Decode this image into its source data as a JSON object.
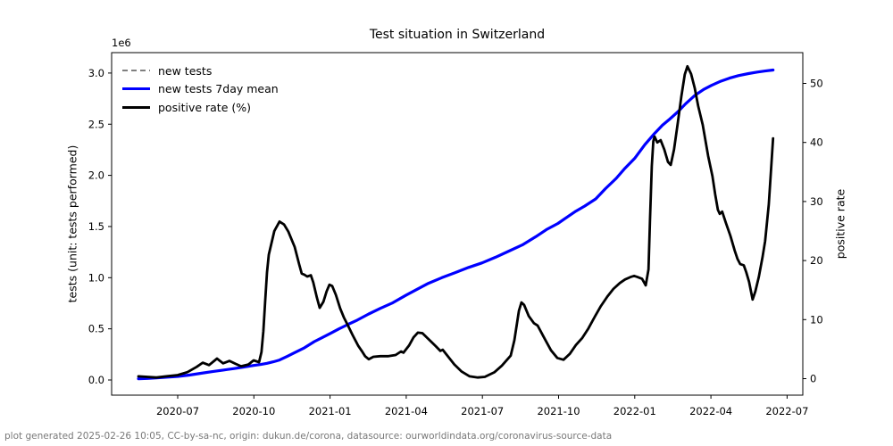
{
  "title": "Test situation in Switzerland",
  "offset_label": "1e6",
  "footer": "plot generated 2025-02-26 10:05, CC-by-sa-nc, origin: dukun.de/corona, datasource: ourworldindata.org/coronavirus-source-data",
  "colors": {
    "new_tests": "#7f7f7f",
    "new_tests_7day_mean": "#0000ff",
    "positive_rate": "#000000",
    "footer_text": "#787878",
    "axis": "#000000"
  },
  "chart_data": {
    "type": "line",
    "title": "Test situation in Switzerland",
    "xlabel": "",
    "ylabel_left": "tests (unit: tests performed)",
    "ylabel_right": "positive rate",
    "y_offset_text": "1e6",
    "grid": false,
    "legend_position": "upper-left",
    "x_ticks": [
      2020.5,
      2020.75,
      2021.0,
      2021.25,
      2021.5,
      2021.75,
      2022.0,
      2022.25,
      2022.5
    ],
    "x_tick_labels": [
      "2020-07",
      "2020-10",
      "2021-01",
      "2021-04",
      "2021-07",
      "2021-10",
      "2022-01",
      "2022-04",
      "2022-07"
    ],
    "y_ticks_left": [
      0.0,
      0.5,
      1.0,
      1.5,
      2.0,
      2.5,
      3.0
    ],
    "y_tick_labels_left": [
      "0.0",
      "0.5",
      "1.0",
      "1.5",
      "2.0",
      "2.5",
      "3.0"
    ],
    "y_ticks_right": [
      0,
      10,
      20,
      30,
      40,
      50
    ],
    "y_tick_labels_right": [
      "0",
      "10",
      "20",
      "30",
      "40",
      "50"
    ],
    "ylim_left": [
      -0.15,
      3.2
    ],
    "ylim_right": [
      -2.8,
      55.2
    ],
    "xlim": [
      2020.28,
      2022.55
    ],
    "legend": [
      {
        "label": "new tests",
        "color": "#7f7f7f",
        "dash": true
      },
      {
        "label": "new tests 7day mean",
        "color": "#0000ff",
        "dash": false
      },
      {
        "label": "positive rate (%)",
        "color": "#000000",
        "dash": false
      }
    ],
    "series": [
      {
        "name": "new tests",
        "axis": "left",
        "unit": "tests (1e6)",
        "color": "#7f7f7f",
        "dash": true,
        "width": 1.8,
        "points_from": "new tests 7day mean"
      },
      {
        "name": "new tests 7day mean",
        "axis": "left",
        "unit": "tests (1e6)",
        "color": "#0000ff",
        "dash": false,
        "width": 3.2,
        "points": [
          [
            2020.371,
            0.012
          ],
          [
            2020.4,
            0.015
          ],
          [
            2020.43,
            0.02
          ],
          [
            2020.462,
            0.027
          ],
          [
            2020.5,
            0.035
          ],
          [
            2020.538,
            0.048
          ],
          [
            2020.576,
            0.065
          ],
          [
            2020.614,
            0.082
          ],
          [
            2020.649,
            0.097
          ],
          [
            2020.685,
            0.112
          ],
          [
            2020.714,
            0.125
          ],
          [
            2020.749,
            0.142
          ],
          [
            2020.773,
            0.152
          ],
          [
            2020.793,
            0.163
          ],
          [
            2020.814,
            0.178
          ],
          [
            2020.834,
            0.195
          ],
          [
            2020.86,
            0.232
          ],
          [
            2020.884,
            0.268
          ],
          [
            2020.916,
            0.315
          ],
          [
            2020.948,
            0.375
          ],
          [
            2020.978,
            0.42
          ],
          [
            2021.001,
            0.455
          ],
          [
            2021.03,
            0.5
          ],
          [
            2021.06,
            0.545
          ],
          [
            2021.089,
            0.585
          ],
          [
            2021.127,
            0.645
          ],
          [
            2021.165,
            0.7
          ],
          [
            2021.206,
            0.755
          ],
          [
            2021.25,
            0.83
          ],
          [
            2021.294,
            0.9
          ],
          [
            2021.323,
            0.945
          ],
          [
            2021.367,
            1.0
          ],
          [
            2021.411,
            1.05
          ],
          [
            2021.455,
            1.1
          ],
          [
            2021.499,
            1.145
          ],
          [
            2021.543,
            1.2
          ],
          [
            2021.587,
            1.26
          ],
          [
            2021.631,
            1.32
          ],
          [
            2021.675,
            1.4
          ],
          [
            2021.71,
            1.47
          ],
          [
            2021.748,
            1.53
          ],
          [
            2021.772,
            1.58
          ],
          [
            2021.807,
            1.65
          ],
          [
            2021.836,
            1.7
          ],
          [
            2021.872,
            1.77
          ],
          [
            2021.904,
            1.87
          ],
          [
            2021.939,
            1.97
          ],
          [
            2021.968,
            2.07
          ],
          [
            2022.001,
            2.17
          ],
          [
            2022.033,
            2.3
          ],
          [
            2022.065,
            2.41
          ],
          [
            2022.091,
            2.49
          ],
          [
            2022.115,
            2.55
          ],
          [
            2022.141,
            2.62
          ],
          [
            2022.167,
            2.7
          ],
          [
            2022.197,
            2.78
          ],
          [
            2022.226,
            2.84
          ],
          [
            2022.252,
            2.88
          ],
          [
            2022.282,
            2.92
          ],
          [
            2022.311,
            2.95
          ],
          [
            2022.34,
            2.975
          ],
          [
            2022.373,
            2.995
          ],
          [
            2022.402,
            3.01
          ],
          [
            2022.428,
            3.02
          ],
          [
            2022.454,
            3.03
          ]
        ]
      },
      {
        "name": "positive rate (%)",
        "axis": "right",
        "unit": "%",
        "color": "#000000",
        "dash": false,
        "width": 2.8,
        "points": [
          [
            2020.371,
            0.4
          ],
          [
            2020.4,
            0.3
          ],
          [
            2020.43,
            0.2
          ],
          [
            2020.462,
            0.4
          ],
          [
            2020.5,
            0.6
          ],
          [
            2020.532,
            1.1
          ],
          [
            2020.562,
            2.0
          ],
          [
            2020.582,
            2.7
          ],
          [
            2020.603,
            2.3
          ],
          [
            2020.629,
            3.4
          ],
          [
            2020.649,
            2.6
          ],
          [
            2020.67,
            3.0
          ],
          [
            2020.69,
            2.5
          ],
          [
            2020.708,
            2.1
          ],
          [
            2020.732,
            2.4
          ],
          [
            2020.749,
            3.1
          ],
          [
            2020.767,
            2.8
          ],
          [
            2020.775,
            4.5
          ],
          [
            2020.781,
            8.0
          ],
          [
            2020.787,
            13.0
          ],
          [
            2020.793,
            18.0
          ],
          [
            2020.799,
            21.0
          ],
          [
            2020.817,
            25.0
          ],
          [
            2020.834,
            26.6
          ],
          [
            2020.849,
            26.1
          ],
          [
            2020.863,
            24.9
          ],
          [
            2020.884,
            22.3
          ],
          [
            2020.899,
            19.3
          ],
          [
            2020.907,
            17.8
          ],
          [
            2020.916,
            17.6
          ],
          [
            2020.925,
            17.3
          ],
          [
            2020.937,
            17.5
          ],
          [
            2020.945,
            16.3
          ],
          [
            2020.957,
            13.7
          ],
          [
            2020.966,
            12.0
          ],
          [
            2020.978,
            13.0
          ],
          [
            2020.989,
            14.8
          ],
          [
            2020.998,
            15.9
          ],
          [
            2021.007,
            15.7
          ],
          [
            2021.019,
            14.2
          ],
          [
            2021.033,
            11.9
          ],
          [
            2021.045,
            10.4
          ],
          [
            2021.057,
            9.2
          ],
          [
            2021.074,
            7.4
          ],
          [
            2021.092,
            5.6
          ],
          [
            2021.104,
            4.7
          ],
          [
            2021.115,
            3.8
          ],
          [
            2021.127,
            3.3
          ],
          [
            2021.142,
            3.7
          ],
          [
            2021.165,
            3.8
          ],
          [
            2021.192,
            3.8
          ],
          [
            2021.215,
            4.0
          ],
          [
            2021.233,
            4.6
          ],
          [
            2021.241,
            4.4
          ],
          [
            2021.259,
            5.6
          ],
          [
            2021.274,
            7.0
          ],
          [
            2021.288,
            7.8
          ],
          [
            2021.303,
            7.7
          ],
          [
            2021.323,
            6.7
          ],
          [
            2021.347,
            5.5
          ],
          [
            2021.362,
            4.7
          ],
          [
            2021.37,
            4.9
          ],
          [
            2021.385,
            3.9
          ],
          [
            2021.408,
            2.4
          ],
          [
            2021.432,
            1.2
          ],
          [
            2021.458,
            0.4
          ],
          [
            2021.485,
            0.2
          ],
          [
            2021.508,
            0.3
          ],
          [
            2021.54,
            1.1
          ],
          [
            2021.564,
            2.2
          ],
          [
            2021.581,
            3.2
          ],
          [
            2021.593,
            3.9
          ],
          [
            2021.605,
            6.5
          ],
          [
            2021.62,
            11.5
          ],
          [
            2021.628,
            12.9
          ],
          [
            2021.637,
            12.5
          ],
          [
            2021.652,
            10.6
          ],
          [
            2021.669,
            9.4
          ],
          [
            2021.681,
            9.0
          ],
          [
            2021.702,
            7.0
          ],
          [
            2021.725,
            4.8
          ],
          [
            2021.746,
            3.5
          ],
          [
            2021.766,
            3.2
          ],
          [
            2021.787,
            4.2
          ],
          [
            2021.807,
            5.7
          ],
          [
            2021.828,
            6.9
          ],
          [
            2021.848,
            8.5
          ],
          [
            2021.869,
            10.5
          ],
          [
            2021.889,
            12.3
          ],
          [
            2021.91,
            13.9
          ],
          [
            2021.93,
            15.2
          ],
          [
            2021.951,
            16.2
          ],
          [
            2021.968,
            16.8
          ],
          [
            2021.986,
            17.2
          ],
          [
            2021.998,
            17.4
          ],
          [
            2022.009,
            17.2
          ],
          [
            2022.024,
            16.9
          ],
          [
            2022.036,
            15.8
          ],
          [
            2022.045,
            18.5
          ],
          [
            2022.05,
            27.0
          ],
          [
            2022.056,
            36.0
          ],
          [
            2022.061,
            40.2
          ],
          [
            2022.065,
            41.0
          ],
          [
            2022.074,
            40.0
          ],
          [
            2022.085,
            40.4
          ],
          [
            2022.097,
            38.8
          ],
          [
            2022.109,
            36.7
          ],
          [
            2022.118,
            36.2
          ],
          [
            2022.129,
            38.8
          ],
          [
            2022.141,
            43.2
          ],
          [
            2022.153,
            47.8
          ],
          [
            2022.164,
            51.5
          ],
          [
            2022.173,
            52.9
          ],
          [
            2022.185,
            51.6
          ],
          [
            2022.197,
            49.2
          ],
          [
            2022.208,
            46.2
          ],
          [
            2022.223,
            43.0
          ],
          [
            2022.241,
            37.7
          ],
          [
            2022.255,
            34.3
          ],
          [
            2022.264,
            31.2
          ],
          [
            2022.273,
            28.6
          ],
          [
            2022.279,
            27.9
          ],
          [
            2022.287,
            28.3
          ],
          [
            2022.299,
            26.4
          ],
          [
            2022.314,
            24.2
          ],
          [
            2022.328,
            21.7
          ],
          [
            2022.337,
            20.3
          ],
          [
            2022.346,
            19.4
          ],
          [
            2022.358,
            19.2
          ],
          [
            2022.366,
            18.0
          ],
          [
            2022.375,
            16.4
          ],
          [
            2022.387,
            13.4
          ],
          [
            2022.396,
            14.8
          ],
          [
            2022.407,
            17.2
          ],
          [
            2022.419,
            20.5
          ],
          [
            2022.428,
            23.3
          ],
          [
            2022.44,
            29.5
          ],
          [
            2022.448,
            36.0
          ],
          [
            2022.454,
            40.7
          ]
        ]
      }
    ]
  }
}
